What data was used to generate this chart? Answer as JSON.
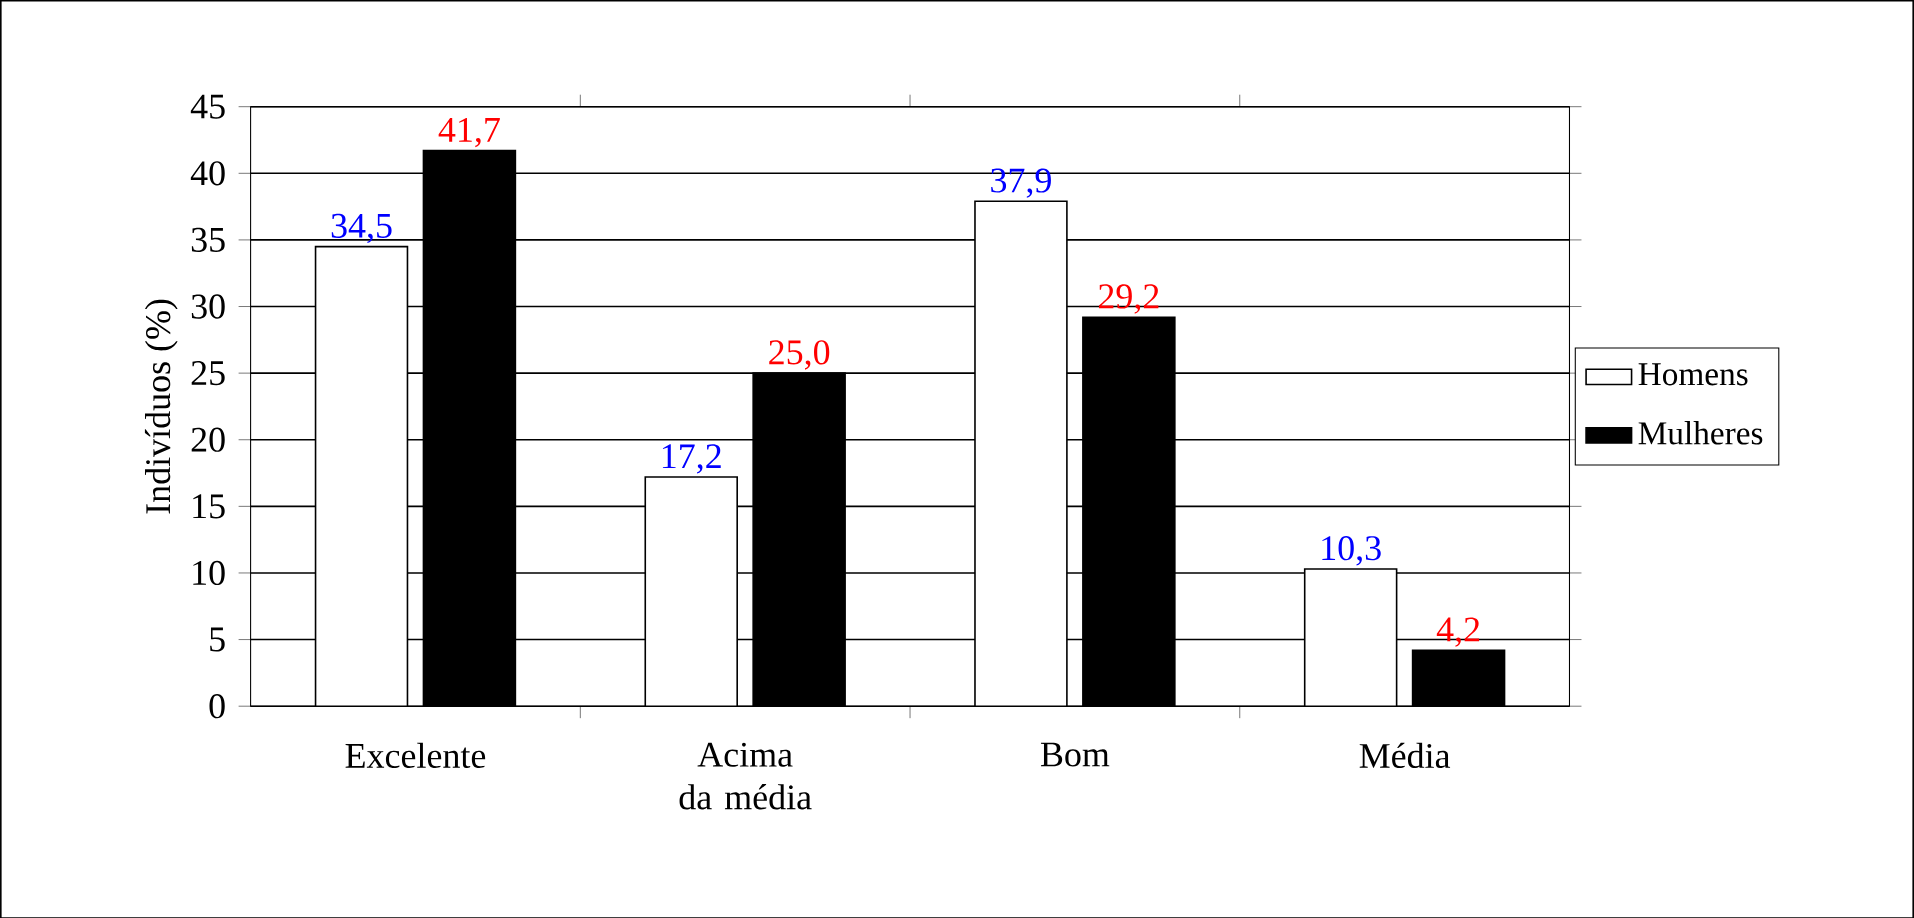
{
  "chart_data": {
    "type": "bar",
    "ylabel": "Indivíduos (%)",
    "categories": [
      "Excelente",
      "Acima da média",
      "Bom",
      "Média"
    ],
    "series": [
      {
        "name": "Homens",
        "color": "#ffffff",
        "values": [
          34.5,
          17.2,
          37.9,
          10.3
        ],
        "value_labels": [
          "34,5",
          "17,2",
          "37,9",
          "10,3"
        ]
      },
      {
        "name": "Mulheres",
        "color": "#000000",
        "values": [
          41.7,
          25.0,
          29.2,
          4.2
        ],
        "value_labels": [
          "41,7",
          "25,0",
          "29,2",
          "4,2"
        ]
      }
    ],
    "ylim": [
      0,
      45
    ],
    "yticks": [
      0,
      5,
      10,
      15,
      20,
      25,
      30,
      35,
      40,
      45
    ],
    "grid": "y",
    "legend": "right"
  }
}
